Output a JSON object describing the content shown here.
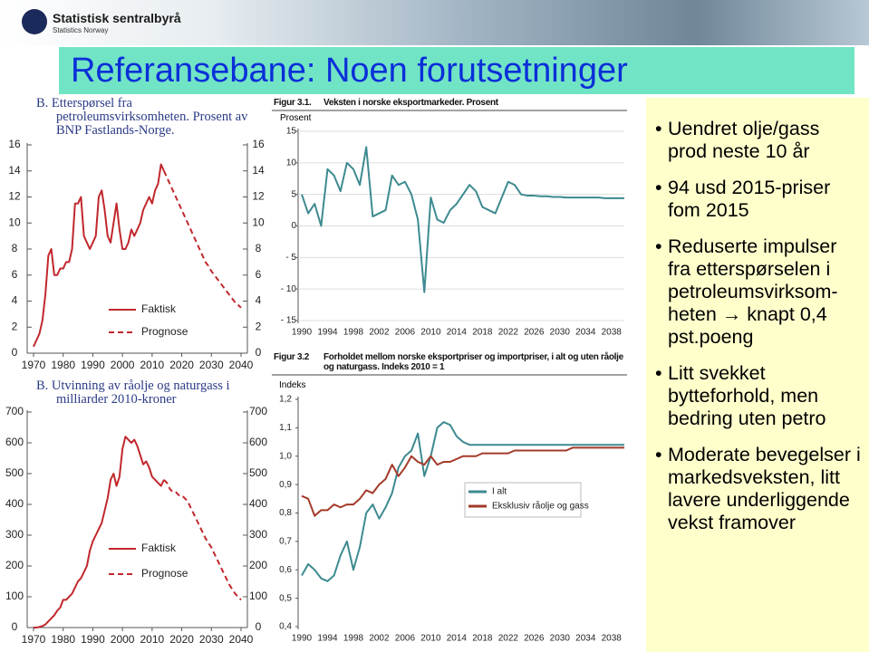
{
  "header": {
    "logo_title": "Statistisk sentralbyrå",
    "logo_subtitle": "Statistics Norway"
  },
  "title": "Referansebane: Noen forutsetninger",
  "bullets": [
    "Uendret olje/gass prod neste 10 år",
    "94 usd 2015-priser fom 2015",
    "Reduserte impulser fra etterspørselen i petroleumsvirksom-heten → knapt 0,4 pst.poeng",
    "Litt svekket bytteforhold, men bedring uten petro",
    "Moderate bevegelser i markedsveksten, litt lavere underliggende vekst framover"
  ],
  "chart_data": [
    {
      "type": "line",
      "title": "B. Etterspørsel fra petroleumsvirksomheten. Prosent av BNP Fastlands-Norge.",
      "x": [
        1970,
        1971,
        1972,
        1973,
        1974,
        1975,
        1976,
        1977,
        1978,
        1979,
        1980,
        1981,
        1982,
        1983,
        1984,
        1985,
        1986,
        1987,
        1988,
        1989,
        1990,
        1991,
        1992,
        1993,
        1994,
        1995,
        1996,
        1997,
        1998,
        1999,
        2000,
        2001,
        2002,
        2003,
        2004,
        2005,
        2006,
        2007,
        2008,
        2009,
        2010,
        2011,
        2012,
        2013,
        2014,
        2015,
        2016,
        2017,
        2018,
        2019,
        2020,
        2021,
        2022,
        2023,
        2024,
        2025,
        2026,
        2027,
        2028,
        2029,
        2030,
        2031,
        2032,
        2033,
        2034,
        2035,
        2036,
        2037,
        2038,
        2039,
        2040
      ],
      "series": [
        {
          "name": "Faktisk",
          "color": "#c0282d",
          "style": "solid",
          "values": [
            0.5,
            1,
            1.5,
            2.5,
            4.5,
            7.5,
            8,
            6,
            6,
            6.5,
            6.5,
            7,
            7,
            8,
            11.5,
            11.5,
            12,
            9,
            8.5,
            8,
            8.5,
            9,
            12,
            12.5,
            11,
            9,
            8.5,
            10,
            11.5,
            9.5,
            8,
            8,
            8.5,
            9.5,
            9,
            9.5,
            10,
            11,
            11.5,
            12,
            11.5,
            12.5,
            13,
            14.5,
            14,
            null,
            null,
            null,
            null,
            null,
            null,
            null,
            null,
            null,
            null,
            null,
            null,
            null,
            null,
            null,
            null,
            null,
            null,
            null,
            null,
            null,
            null,
            null,
            null,
            null,
            null
          ]
        },
        {
          "name": "Prognose",
          "color": "#c0282d",
          "style": "dashed",
          "values": [
            null,
            null,
            null,
            null,
            null,
            null,
            null,
            null,
            null,
            null,
            null,
            null,
            null,
            null,
            null,
            null,
            null,
            null,
            null,
            null,
            null,
            null,
            null,
            null,
            null,
            null,
            null,
            null,
            null,
            null,
            null,
            null,
            null,
            null,
            null,
            null,
            null,
            null,
            null,
            null,
            null,
            null,
            null,
            null,
            14,
            13.5,
            13,
            12.5,
            12,
            11.5,
            11,
            10.5,
            10,
            9.5,
            9,
            8.5,
            8,
            7.5,
            7,
            6.7,
            6.3,
            6,
            5.7,
            5.4,
            5.1,
            4.8,
            4.5,
            4.2,
            3.9,
            3.7,
            3.5
          ]
        }
      ],
      "xlim": [
        1970,
        2040
      ],
      "xticks": [
        1970,
        1980,
        1990,
        2000,
        2010,
        2020,
        2030,
        2040
      ],
      "ylim": [
        0,
        16
      ],
      "yticks": [
        0,
        2,
        4,
        6,
        8,
        10,
        12,
        14,
        16
      ],
      "right_axis": true,
      "grid": false
    },
    {
      "type": "line",
      "title": "B. Utvinning av råolje og naturgass i milliarder 2010-kroner",
      "x": [
        1970,
        1971,
        1972,
        1973,
        1974,
        1975,
        1976,
        1977,
        1978,
        1979,
        1980,
        1981,
        1982,
        1983,
        1984,
        1985,
        1986,
        1987,
        1988,
        1989,
        1990,
        1991,
        1992,
        1993,
        1994,
        1995,
        1996,
        1997,
        1998,
        1999,
        2000,
        2001,
        2002,
        2003,
        2004,
        2005,
        2006,
        2007,
        2008,
        2009,
        2010,
        2011,
        2012,
        2013,
        2014,
        2015,
        2016,
        2017,
        2018,
        2019,
        2020,
        2021,
        2022,
        2023,
        2024,
        2025,
        2026,
        2027,
        2028,
        2029,
        2030,
        2031,
        2032,
        2033,
        2034,
        2035,
        2036,
        2037,
        2038,
        2039,
        2040
      ],
      "series": [
        {
          "name": "Faktisk",
          "color": "#c0282d",
          "style": "solid",
          "values": [
            0,
            0,
            2,
            5,
            10,
            20,
            30,
            40,
            55,
            65,
            90,
            90,
            100,
            110,
            130,
            150,
            160,
            180,
            200,
            250,
            280,
            300,
            320,
            340,
            380,
            420,
            480,
            500,
            460,
            490,
            580,
            620,
            610,
            600,
            610,
            590,
            560,
            530,
            540,
            520,
            490,
            480,
            470,
            460,
            480,
            null,
            null,
            null,
            null,
            null,
            null,
            null,
            null,
            null,
            null,
            null,
            null,
            null,
            null,
            null,
            null,
            null,
            null,
            null,
            null,
            null,
            null,
            null,
            null,
            null,
            null
          ]
        },
        {
          "name": "Prognose",
          "color": "#c0282d",
          "style": "dashed",
          "values": [
            null,
            null,
            null,
            null,
            null,
            null,
            null,
            null,
            null,
            null,
            null,
            null,
            null,
            null,
            null,
            null,
            null,
            null,
            null,
            null,
            null,
            null,
            null,
            null,
            null,
            null,
            null,
            null,
            null,
            null,
            null,
            null,
            null,
            null,
            null,
            null,
            null,
            null,
            null,
            null,
            null,
            null,
            null,
            null,
            480,
            470,
            450,
            440,
            440,
            430,
            430,
            420,
            410,
            390,
            370,
            350,
            330,
            310,
            290,
            275,
            260,
            240,
            220,
            200,
            180,
            160,
            140,
            125,
            110,
            100,
            90
          ]
        }
      ],
      "xlim": [
        1970,
        2040
      ],
      "xticks": [
        1970,
        1980,
        1990,
        2000,
        2010,
        2020,
        2030,
        2040
      ],
      "ylim": [
        0,
        700
      ],
      "yticks": [
        0,
        100,
        200,
        300,
        400,
        500,
        600,
        700
      ],
      "right_axis": true,
      "grid": false
    },
    {
      "type": "line",
      "label": "Figur 3.1.",
      "title": "Veksten i norske eksportmarkeder. Prosent",
      "ylabel": "Prosent",
      "x": [
        1990,
        1991,
        1992,
        1993,
        1994,
        1995,
        1996,
        1997,
        1998,
        1999,
        2000,
        2001,
        2002,
        2003,
        2004,
        2005,
        2006,
        2007,
        2008,
        2009,
        2010,
        2011,
        2012,
        2013,
        2014,
        2015,
        2016,
        2017,
        2018,
        2019,
        2020,
        2021,
        2022,
        2023,
        2024,
        2025,
        2026,
        2027,
        2028,
        2029,
        2030,
        2031,
        2032,
        2033,
        2034,
        2035,
        2036,
        2037,
        2038,
        2039,
        2040
      ],
      "series": [
        {
          "color": "#3d8a90",
          "style": "solid",
          "values": [
            5,
            2,
            3.5,
            0,
            9,
            8,
            5.5,
            10,
            9,
            6.5,
            12.5,
            1.5,
            2,
            2.5,
            8,
            6.5,
            7,
            5,
            1,
            -10.5,
            4.5,
            1,
            0.5,
            2.5,
            3.5,
            5,
            6.5,
            5.5,
            3,
            2.5,
            2,
            4.5,
            7,
            6.5,
            5,
            4.8,
            4.8,
            4.7,
            4.7,
            4.6,
            4.6,
            4.5,
            4.5,
            4.5,
            4.5,
            4.5,
            4.5,
            4.4,
            4.4,
            4.4,
            4.4
          ]
        }
      ],
      "xlim": [
        1990,
        2040
      ],
      "xticks": [
        1990,
        1994,
        1998,
        2002,
        2006,
        2010,
        2014,
        2018,
        2022,
        2026,
        2030,
        2034,
        2038
      ],
      "ylim": [
        -15,
        15
      ],
      "yticks": [
        {
          "value": -15,
          "label": "- 15"
        },
        {
          "value": -10,
          "label": "- 10"
        },
        {
          "value": -5,
          "label": "- 5"
        },
        0,
        5,
        10,
        15
      ],
      "right_axis": false,
      "grid": true
    },
    {
      "type": "line",
      "label": "Figur 3.2",
      "title": "Forholdet mellom norske eksportpriser og importpriser, i alt og uten råolje og naturgass. Indeks 2010 = 1",
      "ylabel": "Indeks",
      "x": [
        1990,
        1991,
        1992,
        1993,
        1994,
        1995,
        1996,
        1997,
        1998,
        1999,
        2000,
        2001,
        2002,
        2003,
        2004,
        2005,
        2006,
        2007,
        2008,
        2009,
        2010,
        2011,
        2012,
        2013,
        2014,
        2015,
        2016,
        2017,
        2018,
        2019,
        2020,
        2021,
        2022,
        2023,
        2024,
        2025,
        2026,
        2027,
        2028,
        2029,
        2030,
        2031,
        2032,
        2033,
        2034,
        2035,
        2036,
        2037,
        2038,
        2039,
        2040
      ],
      "series": [
        {
          "name": "I alt",
          "color": "#3d8a90",
          "style": "solid",
          "values": [
            0.58,
            0.62,
            0.6,
            0.57,
            0.56,
            0.58,
            0.65,
            0.7,
            0.6,
            0.68,
            0.8,
            0.83,
            0.78,
            0.82,
            0.87,
            0.96,
            1.0,
            1.02,
            1.08,
            0.93,
            1.0,
            1.1,
            1.12,
            1.11,
            1.07,
            1.05,
            1.04,
            1.04,
            1.04,
            1.04,
            1.04,
            1.04,
            1.04,
            1.04,
            1.04,
            1.04,
            1.04,
            1.04,
            1.04,
            1.04,
            1.04,
            1.04,
            1.04,
            1.04,
            1.04,
            1.04,
            1.04,
            1.04,
            1.04,
            1.04,
            1.04
          ]
        },
        {
          "name": "Eksklusiv råolje og gass",
          "color": "#a33a2a",
          "style": "solid",
          "values": [
            0.86,
            0.85,
            0.79,
            0.81,
            0.81,
            0.83,
            0.82,
            0.83,
            0.83,
            0.85,
            0.88,
            0.87,
            0.9,
            0.92,
            0.97,
            0.93,
            0.96,
            1.0,
            0.98,
            0.97,
            1.0,
            0.97,
            0.98,
            0.98,
            0.99,
            1.0,
            1.0,
            1.0,
            1.01,
            1.01,
            1.01,
            1.01,
            1.01,
            1.02,
            1.02,
            1.02,
            1.02,
            1.02,
            1.02,
            1.02,
            1.02,
            1.02,
            1.03,
            1.03,
            1.03,
            1.03,
            1.03,
            1.03,
            1.03,
            1.03,
            1.03
          ]
        }
      ],
      "xlim": [
        1990,
        2040
      ],
      "xticks": [
        1990,
        1994,
        1998,
        2002,
        2006,
        2010,
        2014,
        2018,
        2022,
        2026,
        2030,
        2034,
        2038
      ],
      "ylim": [
        0.4,
        1.2
      ],
      "yticks": [
        {
          "value": 0.4,
          "label": "0,4"
        },
        {
          "value": 0.5,
          "label": "0,5"
        },
        {
          "value": 0.6,
          "label": "0,6"
        },
        {
          "value": 0.7,
          "label": "0,7"
        },
        {
          "value": 0.8,
          "label": "0,8"
        },
        {
          "value": 0.9,
          "label": "0,9"
        },
        {
          "value": 1.0,
          "label": "1,0"
        },
        {
          "value": 1.1,
          "label": "1,1"
        },
        {
          "value": 1.2,
          "label": "1,2"
        }
      ],
      "right_axis": false,
      "grid": false
    }
  ]
}
